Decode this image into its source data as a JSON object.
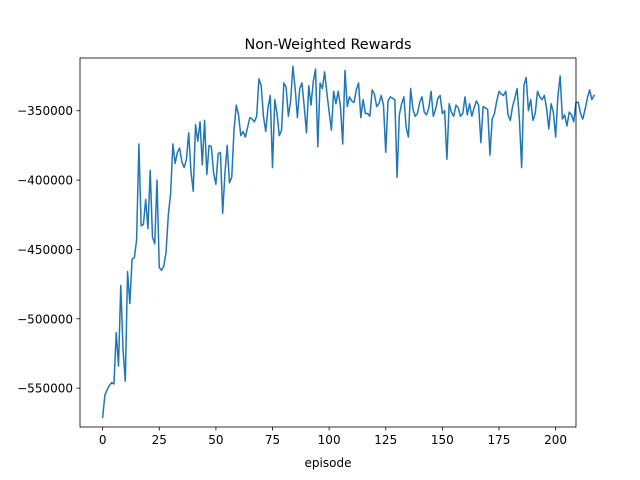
{
  "chart_data": {
    "type": "line",
    "title": "Non-Weighted Rewards",
    "xlabel": "episode",
    "ylabel": "",
    "xlim": [
      -10,
      209
    ],
    "ylim": [
      -578000,
      -312000
    ],
    "xticks": [
      0,
      25,
      50,
      75,
      100,
      125,
      150,
      175,
      200
    ],
    "xtick_labels": [
      "0",
      "25",
      "50",
      "75",
      "100",
      "125",
      "150",
      "175",
      "200"
    ],
    "yticks": [
      -550000,
      -500000,
      -450000,
      -400000,
      -350000
    ],
    "ytick_labels": [
      "−550000",
      "−500000",
      "−450000",
      "−400000",
      "−350000"
    ],
    "grid": false,
    "line_color": "#1f77b4",
    "series": [
      {
        "values": [
          -571000,
          -555000,
          -551000,
          -548000,
          -546000,
          -547000,
          -510000,
          -534000,
          -476000,
          -522000,
          -545000,
          -466000,
          -489000,
          -457000,
          -456000,
          -443000,
          -374000,
          -433000,
          -432000,
          -414000,
          -435000,
          -393000,
          -441000,
          -446000,
          -400000,
          -463000,
          -465000,
          -462000,
          -452000,
          -425000,
          -410000,
          -374000,
          -388000,
          -380000,
          -377000,
          -387000,
          -391000,
          -385000,
          -366000,
          -394000,
          -408000,
          -360000,
          -372000,
          -358000,
          -389000,
          -357000,
          -396000,
          -375000,
          -376000,
          -395000,
          -403000,
          -381000,
          -380000,
          -424000,
          -395000,
          -375000,
          -402000,
          -398000,
          -364000,
          -346000,
          -353000,
          -368000,
          -365000,
          -369000,
          -362000,
          -355000,
          -356000,
          -358000,
          -354000,
          -327000,
          -332000,
          -354000,
          -365000,
          -348000,
          -339000,
          -391000,
          -342000,
          -352000,
          -368000,
          -364000,
          -330000,
          -333000,
          -354000,
          -343000,
          -318000,
          -334000,
          -355000,
          -334000,
          -330000,
          -347000,
          -366000,
          -332000,
          -346000,
          -329000,
          -320000,
          -376000,
          -330000,
          -334000,
          -322000,
          -337000,
          -351000,
          -364000,
          -336000,
          -345000,
          -336000,
          -347000,
          -374000,
          -321000,
          -347000,
          -340000,
          -343000,
          -344000,
          -335000,
          -330000,
          -355000,
          -342000,
          -352000,
          -352000,
          -354000,
          -335000,
          -338000,
          -347000,
          -345000,
          -339000,
          -346000,
          -380000,
          -343000,
          -340000,
          -341000,
          -342000,
          -398000,
          -353000,
          -345000,
          -340000,
          -362000,
          -369000,
          -334000,
          -349000,
          -354000,
          -352000,
          -344000,
          -340000,
          -351000,
          -353000,
          -348000,
          -336000,
          -354000,
          -349000,
          -341000,
          -339000,
          -352000,
          -350000,
          -385000,
          -345000,
          -351000,
          -354000,
          -346000,
          -348000,
          -354000,
          -352000,
          -340000,
          -353000,
          -345000,
          -354000,
          -348000,
          -343000,
          -346000,
          -373000,
          -347000,
          -348000,
          -349000,
          -382000,
          -356000,
          -352000,
          -343000,
          -336000,
          -338000,
          -339000,
          -336000,
          -353000,
          -357000,
          -347000,
          -341000,
          -334000,
          -356000,
          -391000,
          -332000,
          -326000,
          -350000,
          -342000,
          -357000,
          -352000,
          -336000,
          -340000,
          -342000,
          -339000,
          -348000,
          -363000,
          -345000,
          -351000,
          -369000,
          -340000,
          -325000,
          -356000,
          -353000,
          -361000,
          -351000,
          -353000,
          -358000,
          -344000,
          -344000,
          -352000,
          -356000,
          -349000,
          -341000,
          -335000,
          -342000,
          -339000
        ]
      }
    ]
  }
}
